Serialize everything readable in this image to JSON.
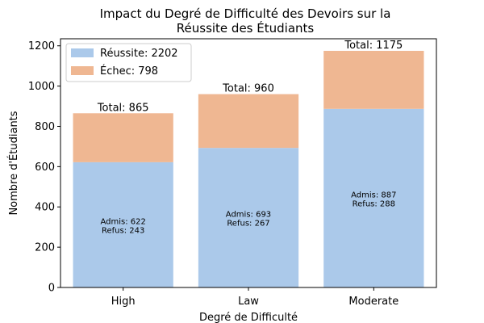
{
  "chart_data": {
    "type": "bar",
    "stacked": true,
    "title": [
      "Impact du Degré de Difficulté des Devoirs sur la",
      "Réussite des Étudiants"
    ],
    "xlabel": "Degré de Difficulté",
    "ylabel": "Nombre d'Étudiants",
    "categories": [
      "High",
      "Law",
      "Moderate"
    ],
    "ylim": [
      0,
      1235
    ],
    "yticks": [
      "0",
      "200",
      "400",
      "600",
      "800",
      "1000",
      "1200"
    ],
    "series": [
      {
        "name": "Réussite",
        "legend_label": "Réussite: 2202",
        "color": "#abc9ea",
        "values": [
          622,
          693,
          887
        ]
      },
      {
        "name": "Échec",
        "legend_label": "Échec: 798",
        "color": "#efb792",
        "values": [
          243,
          267,
          288
        ]
      }
    ],
    "totals": [
      "Total: 865",
      "Total: 960",
      "Total: 1175"
    ],
    "inner_labels": [
      [
        "Admis: 622",
        "Refus: 243"
      ],
      [
        "Admis: 693",
        "Refus: 267"
      ],
      [
        "Admis: 887",
        "Refus: 288"
      ]
    ],
    "legend_position": "top-left",
    "grid": false
  }
}
